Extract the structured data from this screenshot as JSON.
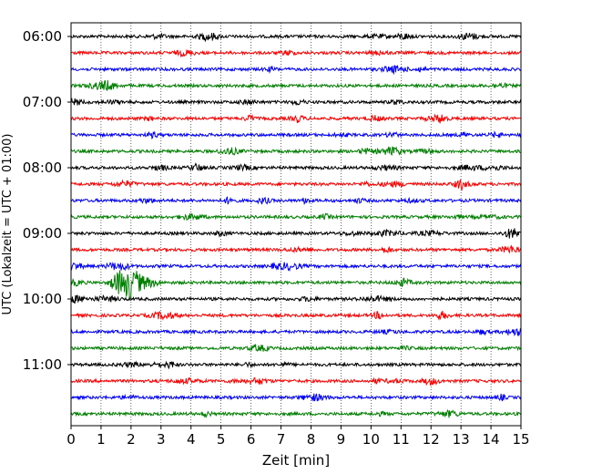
{
  "chart_data": {
    "type": "line",
    "title": "",
    "xlabel": "Zeit  [min]",
    "ylabel": "UTC (Lokalzeit = UTC + 01:00)",
    "xlim": [
      0,
      15
    ],
    "x_ticks": [
      0,
      1,
      2,
      3,
      4,
      5,
      6,
      7,
      8,
      9,
      10,
      11,
      12,
      13,
      14,
      15
    ],
    "y_tick_labels": [
      "06:00",
      "07:00",
      "08:00",
      "09:00",
      "10:00",
      "11:00"
    ],
    "grid": "vertical dotted lines at each minute",
    "trace_interval_minutes": 15,
    "trace_colors": [
      "#000000",
      "#ff0000",
      "#0000ff",
      "#008000"
    ],
    "traces": [
      {
        "start": "06:00",
        "color": "#000000",
        "event": null
      },
      {
        "start": "06:15",
        "color": "#ff0000",
        "event": null
      },
      {
        "start": "06:30",
        "color": "#0000ff",
        "event": null
      },
      {
        "start": "06:45",
        "color": "#008000",
        "event": null
      },
      {
        "start": "07:00",
        "color": "#000000",
        "event": null
      },
      {
        "start": "07:15",
        "color": "#ff0000",
        "event": null
      },
      {
        "start": "07:30",
        "color": "#0000ff",
        "event": null
      },
      {
        "start": "07:45",
        "color": "#008000",
        "event": null
      },
      {
        "start": "08:00",
        "color": "#000000",
        "event": null
      },
      {
        "start": "08:15",
        "color": "#ff0000",
        "event": null
      },
      {
        "start": "08:30",
        "color": "#0000ff",
        "event": null
      },
      {
        "start": "08:45",
        "color": "#008000",
        "event": null
      },
      {
        "start": "09:00",
        "color": "#000000",
        "event": null
      },
      {
        "start": "09:15",
        "color": "#ff0000",
        "event": null
      },
      {
        "start": "09:30",
        "color": "#0000ff",
        "event": null
      },
      {
        "start": "09:45",
        "color": "#008000",
        "event": {
          "start_min": 1.2,
          "peak_min": 2.0,
          "end_min": 3.0
        }
      },
      {
        "start": "10:00",
        "color": "#000000",
        "event": null
      },
      {
        "start": "10:15",
        "color": "#ff0000",
        "event": null
      },
      {
        "start": "10:30",
        "color": "#0000ff",
        "event": null
      },
      {
        "start": "10:45",
        "color": "#008000",
        "event": null
      },
      {
        "start": "11:00",
        "color": "#000000",
        "event": null
      },
      {
        "start": "11:15",
        "color": "#ff0000",
        "event": null
      },
      {
        "start": "11:30",
        "color": "#0000ff",
        "event": null
      },
      {
        "start": "11:45",
        "color": "#008000",
        "event": null
      }
    ]
  }
}
